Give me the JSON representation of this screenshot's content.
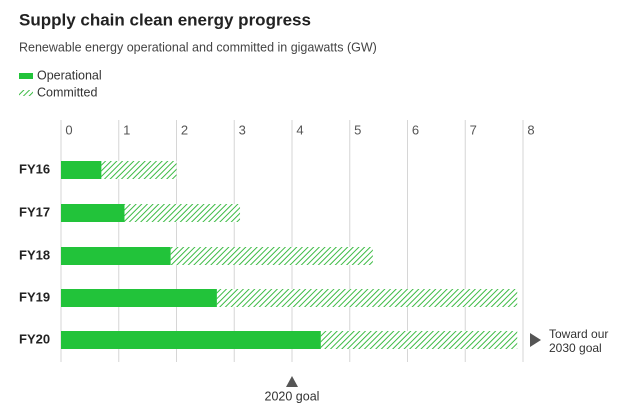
{
  "chart_data": {
    "type": "hbar-stacked",
    "title": "Supply chain clean energy progress",
    "subtitle": "Renewable energy operational and committed in gigawatts (GW)",
    "categories": [
      "FY16",
      "FY17",
      "FY18",
      "FY19",
      "FY20"
    ],
    "series": [
      {
        "name": "Operational",
        "color": "#22c33a",
        "style": "solid",
        "values": [
          0.7,
          1.1,
          1.9,
          2.7,
          4.5
        ]
      },
      {
        "name": "Committed",
        "color": "#3dbb45",
        "style": "hatched",
        "values": [
          1.3,
          2.0,
          3.5,
          5.2,
          3.4
        ]
      }
    ],
    "xlim": [
      0,
      8
    ],
    "xticks": [
      0,
      1,
      2,
      3,
      4,
      5,
      6,
      7,
      8
    ],
    "grid": true,
    "goal_2020": {
      "label": "2020 goal",
      "value": 4
    },
    "goal_2030": {
      "label": [
        "Toward our",
        "2030 goal"
      ]
    }
  }
}
